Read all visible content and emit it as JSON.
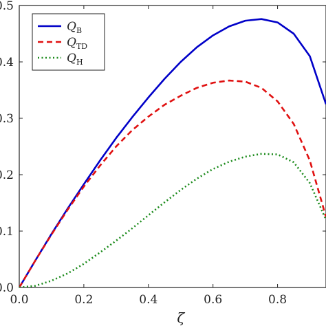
{
  "chart_data": {
    "type": "line",
    "xlabel": "ζ",
    "ylabel": "",
    "xlim": [
      0,
      0.95
    ],
    "ylim": [
      0,
      0.5
    ],
    "x_ticks": [
      "0.0",
      "0.2",
      "0.4",
      "0.6",
      "0.8"
    ],
    "y_ticks": [
      "0.0",
      "0.1",
      "0.2",
      "0.3",
      "0.4",
      "0.5"
    ],
    "legend_position": "top-left",
    "grid": false,
    "series": [
      {
        "name": "Q_B",
        "label_main": "Q",
        "label_sub": "B",
        "color": "#0000c8",
        "style": "solid",
        "x": [
          0,
          0.05,
          0.1,
          0.15,
          0.2,
          0.25,
          0.3,
          0.35,
          0.4,
          0.45,
          0.5,
          0.55,
          0.6,
          0.65,
          0.7,
          0.75,
          0.8,
          0.85,
          0.9,
          0.95
        ],
        "y": [
          0,
          0.048,
          0.095,
          0.14,
          0.183,
          0.225,
          0.265,
          0.302,
          0.337,
          0.37,
          0.4,
          0.426,
          0.447,
          0.463,
          0.473,
          0.476,
          0.47,
          0.45,
          0.41,
          0.325
        ]
      },
      {
        "name": "Q_TD",
        "label_main": "Q",
        "label_sub": "TD",
        "color": "#e01010",
        "style": "dashed",
        "x": [
          0,
          0.05,
          0.1,
          0.15,
          0.2,
          0.25,
          0.3,
          0.35,
          0.4,
          0.45,
          0.5,
          0.55,
          0.6,
          0.65,
          0.7,
          0.75,
          0.8,
          0.85,
          0.9,
          0.95
        ],
        "y": [
          0,
          0.048,
          0.094,
          0.138,
          0.179,
          0.216,
          0.25,
          0.279,
          0.303,
          0.324,
          0.34,
          0.354,
          0.363,
          0.367,
          0.365,
          0.354,
          0.33,
          0.29,
          0.225,
          0.125
        ]
      },
      {
        "name": "Q_H",
        "label_main": "Q",
        "label_sub": "H",
        "color": "#1a8a1a",
        "style": "dotted",
        "x": [
          0,
          0.05,
          0.1,
          0.15,
          0.2,
          0.25,
          0.3,
          0.35,
          0.4,
          0.45,
          0.5,
          0.55,
          0.6,
          0.65,
          0.7,
          0.75,
          0.8,
          0.85,
          0.9,
          0.95
        ],
        "y": [
          0,
          0.003,
          0.012,
          0.025,
          0.042,
          0.062,
          0.083,
          0.105,
          0.128,
          0.151,
          0.173,
          0.193,
          0.21,
          0.223,
          0.232,
          0.237,
          0.236,
          0.222,
          0.185,
          0.12
        ]
      }
    ]
  }
}
